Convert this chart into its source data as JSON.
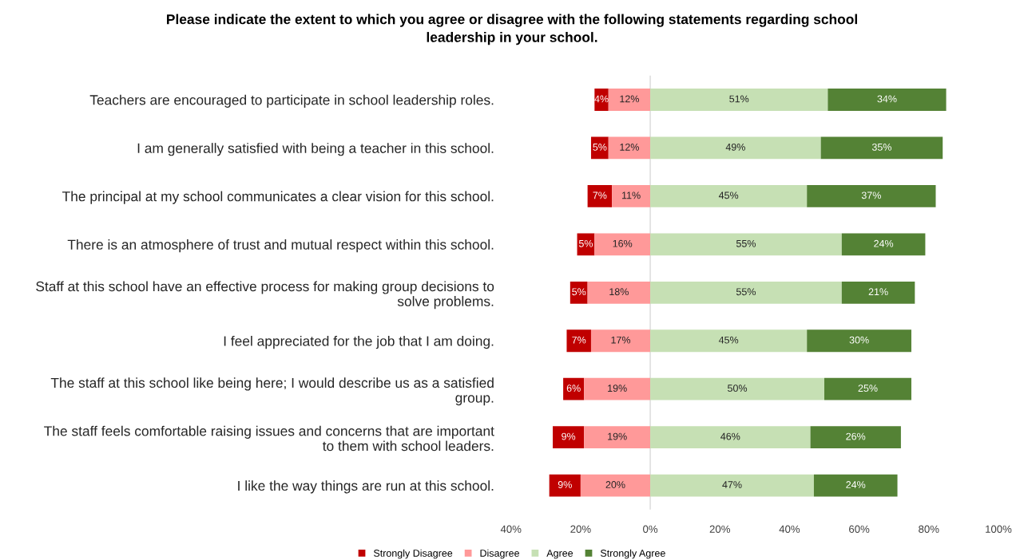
{
  "chart_data": {
    "type": "bar",
    "orientation": "horizontal",
    "title": "Please indicate the extent to which you agree or disagree with the following statements regarding school\nleadership in your school.",
    "categories": [
      "Teachers are encouraged to participate in school leadership roles.",
      "I am generally satisfied with being a teacher in this school.",
      "The principal at my school communicates a clear vision for this school.",
      "There is an atmosphere of trust and mutual respect within this school.",
      "Staff at this school have an effective process for making group decisions to\nsolve problems.",
      "I feel appreciated for the job that I am doing.",
      "The staff at this school like being here; I would describe us as a satisfied\ngroup.",
      "The staff feels comfortable raising issues and concerns that are important\nto them with school leaders.",
      "I like the way things are run at this school."
    ],
    "series": [
      {
        "name": "Strongly Disagree",
        "color": "#c00000",
        "values": [
          4,
          5,
          7,
          5,
          5,
          7,
          6,
          9,
          9
        ],
        "base": [
          -16,
          -17,
          -18,
          -21,
          -23,
          -24,
          -25,
          -28,
          -29
        ],
        "value_labels": [
          "4%",
          "5%",
          "7%",
          "5%",
          "5%",
          "7%",
          "6%",
          "9%",
          "9%"
        ]
      },
      {
        "name": "Disagree",
        "color": "#ff9999",
        "values": [
          12,
          12,
          11,
          16,
          18,
          17,
          19,
          19,
          20
        ],
        "base": [
          -12,
          -12,
          -11,
          -16,
          -18,
          -17,
          -19,
          -19,
          -20
        ],
        "value_labels": [
          "12%",
          "12%",
          "11%",
          "16%",
          "18%",
          "17%",
          "19%",
          "19%",
          "20%"
        ]
      },
      {
        "name": "Agree",
        "color": "#c6e0b4",
        "values": [
          51,
          49,
          45,
          55,
          55,
          45,
          50,
          46,
          47
        ],
        "base": [
          0,
          0,
          0,
          0,
          0,
          0,
          0,
          0,
          0
        ],
        "value_labels": [
          "51%",
          "49%",
          "45%",
          "55%",
          "55%",
          "45%",
          "50%",
          "46%",
          "47%"
        ]
      },
      {
        "name": "Strongly Agree",
        "color": "#548235",
        "values": [
          34,
          35,
          37,
          24,
          21,
          30,
          25,
          26,
          24
        ],
        "base": [
          51,
          49,
          45,
          55,
          55,
          45,
          50,
          46,
          47
        ],
        "value_labels": [
          "34%",
          "35%",
          "37%",
          "24%",
          "21%",
          "30%",
          "25%",
          "26%",
          "24%"
        ]
      }
    ],
    "xlim": [
      -40,
      100
    ],
    "xticks": [
      {
        "value": -40,
        "label": "40%"
      },
      {
        "value": -20,
        "label": "20%"
      },
      {
        "value": 0,
        "label": "0%"
      },
      {
        "value": 20,
        "label": "20%"
      },
      {
        "value": 40,
        "label": "40%"
      },
      {
        "value": 60,
        "label": "60%"
      },
      {
        "value": 80,
        "label": "80%"
      },
      {
        "value": 100,
        "label": "100%"
      }
    ],
    "ref_lines": [
      {
        "axis": "x",
        "value": 0,
        "color": "#d9d9d9"
      }
    ],
    "grid": false,
    "legend": "bottom"
  }
}
